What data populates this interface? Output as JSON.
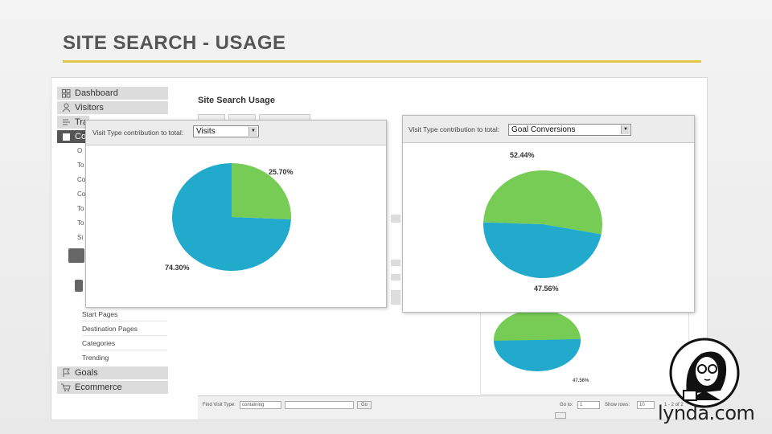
{
  "slide": {
    "title": "SITE SEARCH - USAGE",
    "accent_color": "#e0c646"
  },
  "sidebar": {
    "sections": [
      {
        "label": "Dashboard",
        "icon": "dashboard-icon"
      },
      {
        "label": "Visitors",
        "icon": "person-icon"
      },
      {
        "label": "Tra",
        "icon": "traffic-icon"
      },
      {
        "label": "Co",
        "icon": "content-icon",
        "active": true
      },
      {
        "label": "Goals",
        "icon": "flag-icon"
      },
      {
        "label": "Ecommerce",
        "icon": "cart-icon"
      }
    ],
    "content_items": [
      "O",
      "To",
      "Co",
      "Co",
      "To",
      "To",
      "Si"
    ],
    "site_search_items": [
      "Start Pages",
      "Destination Pages",
      "Categories",
      "Trending"
    ]
  },
  "main": {
    "title": "Site Search Usage",
    "bottom_bar": {
      "filter_label": "Find Visit Type:",
      "filter_select": "containing",
      "go_label": "Go",
      "goto_label": "Go to:",
      "goto_value": "1",
      "show_rows_label": "Show rows:",
      "show_rows_value": "10",
      "range_text": "1 - 2 of 2"
    },
    "background_chart": {
      "slice_label": "47.56%"
    }
  },
  "panels": {
    "left": {
      "header_label": "Visit Type contribution to total:",
      "select_value": "Visits",
      "labels": {
        "green": "25.70%",
        "blue": "74.30%"
      },
      "chart_data": {
        "type": "pie",
        "values": [
          25.7,
          74.3
        ],
        "colors": [
          "#77cc55",
          "#22aacc"
        ]
      }
    },
    "right": {
      "header_label": "Visit Type contribution to total:",
      "select_value": "Goal Conversions",
      "labels": {
        "green": "52.44%",
        "blue": "47.56%"
      },
      "chart_data": {
        "type": "pie",
        "values": [
          52.44,
          47.56
        ],
        "colors": [
          "#77cc55",
          "#22aacc"
        ]
      }
    }
  },
  "branding": {
    "logo_text": "lynda.com"
  },
  "colors": {
    "pie_green": "#77cc55",
    "pie_blue": "#22aacc"
  }
}
